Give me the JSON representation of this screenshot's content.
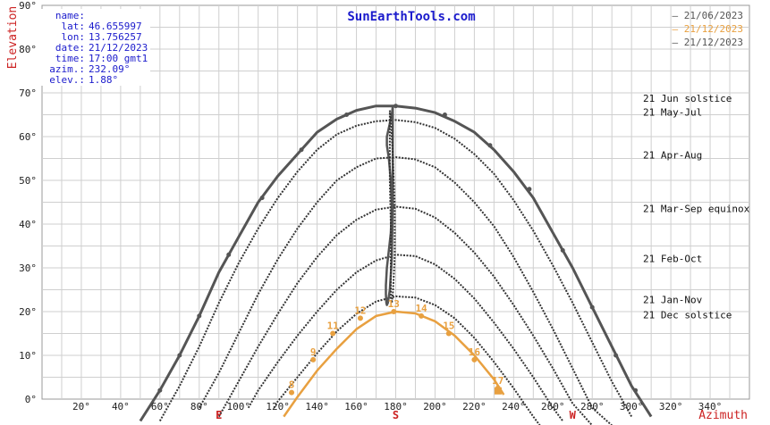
{
  "site_title": "SunEarthTools.com",
  "info": {
    "labels": [
      "name:",
      "lat:",
      "lon:",
      "date:",
      "time:",
      "azim.:",
      "elev.:"
    ],
    "values": [
      "",
      "46.655997",
      "13.756257",
      "21/12/2023",
      "17:00 gmt1",
      "232.09°",
      "1.88°"
    ]
  },
  "legend": [
    {
      "label": "21/06/2023",
      "color": "#555555"
    },
    {
      "label": "21/12/2023",
      "color": "#e8a040"
    },
    {
      "label": "21/12/2023",
      "color": "#555555"
    }
  ],
  "curve_labels": [
    {
      "text": "21 Jun  solstice",
      "elev": 68.8
    },
    {
      "text": "21 May-Jul",
      "elev": 65.6
    },
    {
      "text": "21 Apr-Aug",
      "elev": 55.8
    },
    {
      "text": "21 Mar-Sep equinox",
      "elev": 43.6
    },
    {
      "text": "21 Feb-Oct",
      "elev": 32.1
    },
    {
      "text": "21 Jan-Nov",
      "elev": 22.8
    },
    {
      "text": "21 Dec  solstice",
      "elev": 19.3
    }
  ],
  "chart_data": {
    "type": "line",
    "xlabel": "Azimuth",
    "ylabel": "Elevation",
    "xlim": [
      0,
      360
    ],
    "ylim": [
      0,
      90
    ],
    "x_ticks": [
      20,
      40,
      60,
      80,
      100,
      120,
      140,
      160,
      180,
      200,
      220,
      240,
      260,
      280,
      300,
      320,
      340
    ],
    "x_tick_labels": [
      "20°",
      "40°",
      "60°",
      "80°",
      "100°",
      "120°",
      "140°",
      "160°",
      "180°",
      "200°",
      "220°",
      "240°",
      "260°",
      "280°",
      "300°",
      "320°",
      "340°"
    ],
    "y_ticks": [
      0,
      10,
      20,
      30,
      40,
      50,
      60,
      70,
      80,
      90
    ],
    "y_tick_labels": [
      "0°",
      "10°",
      "20°",
      "30°",
      "40°",
      "50°",
      "60°",
      "70°",
      "80°",
      "90°"
    ],
    "cardinals": [
      {
        "label": "E",
        "az": 90
      },
      {
        "label": "S",
        "az": 180
      },
      {
        "label": "W",
        "az": 270
      }
    ],
    "grid": true,
    "series": [
      {
        "name": "21/06/2023",
        "style": "solid",
        "color": "#555555",
        "x": [
          50,
          60,
          70,
          80,
          90,
          100,
          110,
          120,
          130,
          140,
          150,
          160,
          170,
          180,
          190,
          200,
          210,
          220,
          230,
          240,
          250,
          260,
          270,
          280,
          290,
          300,
          310
        ],
        "y": [
          -5,
          2,
          10,
          19,
          29,
          37,
          45,
          51,
          56,
          61,
          64,
          66,
          67,
          67,
          66.5,
          65.5,
          63.5,
          61,
          57,
          52,
          46,
          38,
          30,
          21,
          12,
          3,
          -4
        ]
      },
      {
        "name": "21 May-Jul",
        "style": "dashed",
        "color": "#333333",
        "x": [
          60,
          70,
          80,
          90,
          100,
          110,
          120,
          130,
          140,
          150,
          160,
          170,
          180,
          190,
          200,
          210,
          220,
          230,
          240,
          250,
          260,
          270,
          280,
          290,
          300
        ],
        "y": [
          -5,
          3,
          12,
          22,
          31,
          39,
          46,
          52,
          57,
          60.5,
          62.5,
          63.5,
          63.8,
          63.3,
          62,
          59.5,
          56,
          51.5,
          45.5,
          38.5,
          30.5,
          22,
          13,
          4,
          -4
        ]
      },
      {
        "name": "21 Apr-Aug",
        "style": "dashed",
        "color": "#333333",
        "x": [
          80,
          90,
          100,
          110,
          120,
          130,
          140,
          150,
          160,
          170,
          180,
          190,
          200,
          210,
          220,
          230,
          240,
          250,
          260,
          270,
          280,
          290
        ],
        "y": [
          -2,
          6,
          15,
          24,
          32,
          39,
          45,
          50,
          53,
          55,
          55.3,
          54.8,
          53,
          49.5,
          45,
          39.5,
          32.5,
          24.5,
          16,
          7,
          -2,
          -6
        ]
      },
      {
        "name": "21 Mar-Sep equinox",
        "style": "dashed",
        "color": "#333333",
        "x": [
          90,
          100,
          110,
          120,
          130,
          140,
          150,
          160,
          170,
          180,
          190,
          200,
          210,
          220,
          230,
          240,
          250,
          260,
          270,
          280
        ],
        "y": [
          -4,
          4,
          12,
          19.5,
          26.5,
          32.5,
          37.5,
          41,
          43.3,
          44,
          43.5,
          41.5,
          38,
          33.5,
          28,
          21.5,
          14.5,
          7,
          -1,
          -6
        ]
      },
      {
        "name": "21 Feb-Oct",
        "style": "dashed",
        "color": "#333333",
        "x": [
          105,
          110,
          120,
          130,
          140,
          150,
          160,
          170,
          180,
          190,
          200,
          210,
          220,
          230,
          240,
          250,
          260,
          265
        ],
        "y": [
          -2,
          2,
          8.5,
          14.5,
          20,
          25,
          29,
          31.7,
          33,
          32.7,
          30.8,
          27.5,
          23,
          17.5,
          11.5,
          5,
          -2,
          -5
        ]
      },
      {
        "name": "21 Jan-Nov",
        "style": "dashed",
        "color": "#333333",
        "x": [
          118,
          120,
          130,
          140,
          150,
          160,
          170,
          180,
          190,
          200,
          210,
          220,
          230,
          240,
          250,
          255
        ],
        "y": [
          -2,
          -0.5,
          5,
          10.5,
          15.5,
          19.5,
          22.3,
          23.5,
          23.2,
          21.5,
          18.5,
          14,
          8.5,
          2.5,
          -4,
          -7
        ]
      },
      {
        "name": "21/12/2023",
        "style": "orange",
        "color": "#e8a040",
        "x": [
          123,
          130,
          140,
          150,
          160,
          170,
          180,
          190,
          200,
          210,
          220,
          230,
          235
        ],
        "y": [
          -4,
          0.5,
          6.5,
          11.5,
          16,
          19,
          20,
          19.6,
          17.8,
          14.5,
          10,
          4.5,
          1
        ]
      },
      {
        "name": "analemma",
        "style": "solid-dark",
        "color": "#555555",
        "x": [
          178.5,
          178,
          176.5,
          175.5,
          175.5,
          176.5,
          177.5,
          178,
          177.5,
          176.5,
          175.5,
          175,
          175,
          175.2,
          175.5,
          176,
          177,
          178,
          178.5,
          178.5,
          178.5
        ],
        "y": [
          67,
          65,
          62,
          60,
          58,
          55,
          50,
          44,
          38,
          34,
          30,
          26,
          24,
          22,
          21.5,
          22,
          25,
          32,
          44,
          56,
          67
        ]
      },
      {
        "name": "analemma2",
        "style": "dashed",
        "color": "#333333",
        "x": [
          177,
          177.5,
          178,
          178.5,
          179,
          179.5,
          179.5,
          179.5,
          179,
          178.5,
          178,
          177.5,
          177.5,
          177.5,
          177,
          177
        ],
        "y": [
          66,
          64,
          60,
          56,
          50,
          44,
          38,
          33,
          28,
          24,
          22,
          24,
          30,
          40,
          50,
          66
        ]
      }
    ],
    "hour_markers": [
      {
        "label": "8",
        "az": 127,
        "elev": 1.5
      },
      {
        "label": "9",
        "az": 138,
        "elev": 9.0
      },
      {
        "label": "11",
        "az": 148,
        "elev": 15.0
      },
      {
        "label": "12",
        "az": 162,
        "elev": 18.5
      },
      {
        "label": "13",
        "az": 179,
        "elev": 20.0
      },
      {
        "label": "14",
        "az": 193,
        "elev": 19.0
      },
      {
        "label": "15",
        "az": 207,
        "elev": 15.0
      },
      {
        "label": "16",
        "az": 220,
        "elev": 9.0
      },
      {
        "label": "17",
        "az": 232,
        "elev": 2.5
      }
    ],
    "hour_markers_summer": [
      {
        "az": 60,
        "elev": 2
      },
      {
        "az": 70,
        "elev": 10
      },
      {
        "az": 80,
        "elev": 19
      },
      {
        "az": 95,
        "elev": 33
      },
      {
        "az": 112,
        "elev": 46
      },
      {
        "az": 132,
        "elev": 57
      },
      {
        "az": 155,
        "elev": 65
      },
      {
        "az": 180,
        "elev": 67
      },
      {
        "az": 205,
        "elev": 65
      },
      {
        "az": 228,
        "elev": 58
      },
      {
        "az": 248,
        "elev": 48
      },
      {
        "az": 265,
        "elev": 34
      },
      {
        "az": 280,
        "elev": 21
      },
      {
        "az": 292,
        "elev": 10
      },
      {
        "az": 302,
        "elev": 2
      }
    ],
    "current_sun": {
      "az": 232.09,
      "elev": 1.88
    }
  }
}
